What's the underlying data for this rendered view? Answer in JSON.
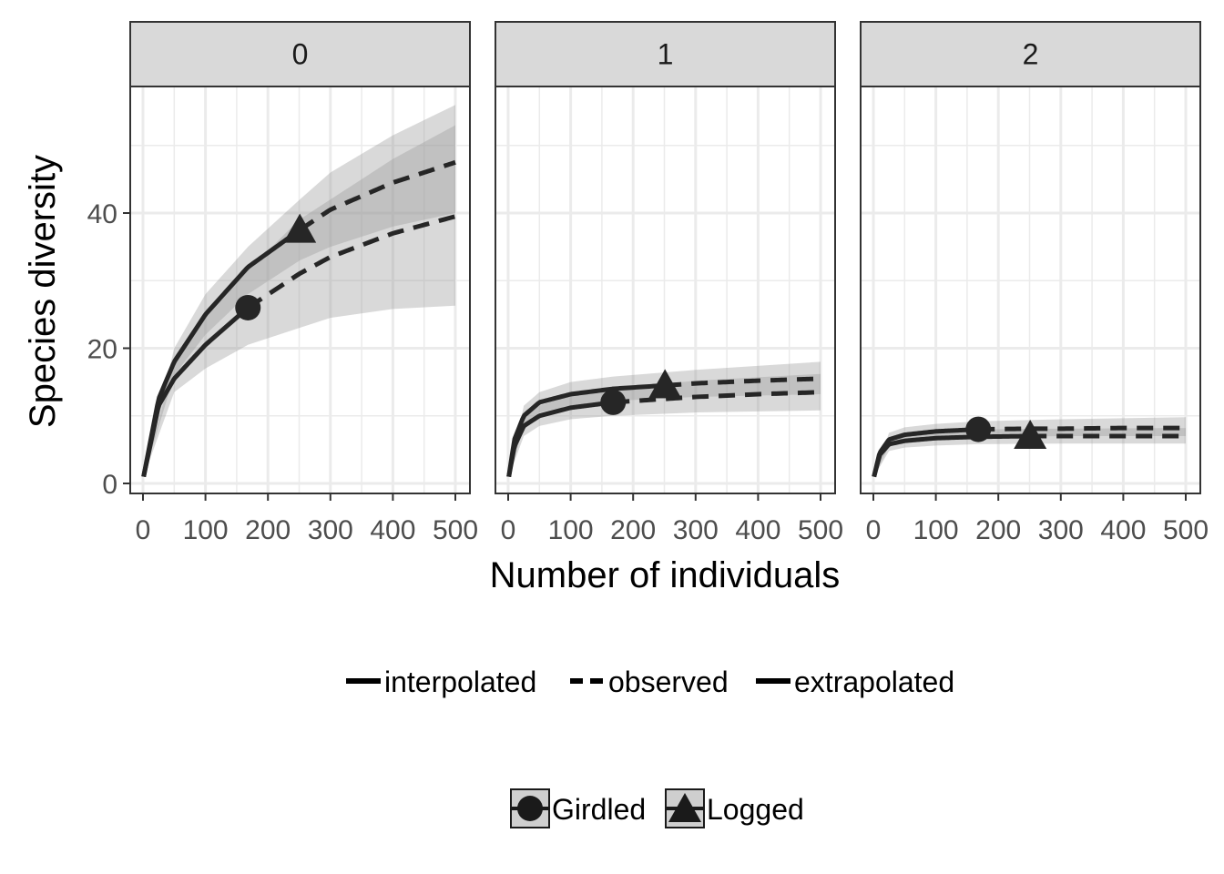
{
  "chart_data": {
    "type": "line",
    "title": "",
    "xlabel": "Number of individuals",
    "ylabel": "Species diversity",
    "xlim": [
      0,
      500
    ],
    "ylim": [
      0,
      55
    ],
    "x_ticks": [
      "0",
      "100",
      "200",
      "300",
      "400",
      "500"
    ],
    "y_ticks": [
      "0",
      "20",
      "40"
    ],
    "grid": true,
    "facets": [
      {
        "label": "0",
        "series": [
          {
            "name": "Girdled",
            "observed": {
              "x": 168,
              "y": 26
            },
            "points": [
              [
                1,
                1
              ],
              [
                25,
                11.5
              ],
              [
                50,
                15.5
              ],
              [
                100,
                20.5
              ],
              [
                168,
                26
              ],
              [
                250,
                31
              ],
              [
                300,
                33.5
              ],
              [
                400,
                37
              ],
              [
                500,
                39.5
              ]
            ],
            "band_lower": [
              [
                1,
                1
              ],
              [
                50,
                13.5
              ],
              [
                100,
                17
              ],
              [
                168,
                20.5
              ],
              [
                250,
                23
              ],
              [
                300,
                24.5
              ],
              [
                400,
                25.8
              ],
              [
                500,
                26.3
              ]
            ],
            "band_upper": [
              [
                1,
                1
              ],
              [
                50,
                18
              ],
              [
                100,
                24.5
              ],
              [
                168,
                31.5
              ],
              [
                250,
                39
              ],
              [
                300,
                42
              ],
              [
                400,
                48
              ],
              [
                500,
                53
              ]
            ]
          },
          {
            "name": "Logged",
            "observed": {
              "x": 251,
              "y": 37.5
            },
            "points": [
              [
                1,
                1
              ],
              [
                25,
                12.5
              ],
              [
                50,
                18
              ],
              [
                100,
                25
              ],
              [
                168,
                32
              ],
              [
                251,
                37.5
              ],
              [
                300,
                40.5
              ],
              [
                400,
                44.5
              ],
              [
                500,
                47.5
              ]
            ],
            "band_lower": [
              [
                1,
                1
              ],
              [
                50,
                16
              ],
              [
                100,
                22
              ],
              [
                168,
                28
              ],
              [
                251,
                33
              ],
              [
                300,
                35
              ],
              [
                400,
                38
              ],
              [
                500,
                40
              ]
            ],
            "band_upper": [
              [
                1,
                1
              ],
              [
                50,
                20
              ],
              [
                100,
                28
              ],
              [
                168,
                35
              ],
              [
                251,
                42
              ],
              [
                300,
                46
              ],
              [
                400,
                51.5
              ],
              [
                500,
                56
              ]
            ]
          }
        ]
      },
      {
        "label": "1",
        "series": [
          {
            "name": "Girdled",
            "observed": {
              "x": 168,
              "y": 12
            },
            "points": [
              [
                1,
                1
              ],
              [
                10,
                5.5
              ],
              [
                25,
                8.5
              ],
              [
                50,
                10
              ],
              [
                100,
                11.2
              ],
              [
                168,
                12
              ],
              [
                250,
                12.5
              ],
              [
                300,
                12.8
              ],
              [
                400,
                13.2
              ],
              [
                500,
                13.5
              ]
            ],
            "band_lower": [
              [
                1,
                1
              ],
              [
                25,
                7
              ],
              [
                50,
                8.5
              ],
              [
                100,
                9.5
              ],
              [
                168,
                10
              ],
              [
                300,
                10.5
              ],
              [
                500,
                10.8
              ]
            ],
            "band_upper": [
              [
                1,
                1
              ],
              [
                25,
                10
              ],
              [
                50,
                11.5
              ],
              [
                100,
                13
              ],
              [
                168,
                14
              ],
              [
                300,
                15.2
              ],
              [
                500,
                16.2
              ]
            ]
          },
          {
            "name": "Logged",
            "observed": {
              "x": 251,
              "y": 14.5
            },
            "points": [
              [
                1,
                1
              ],
              [
                10,
                6.5
              ],
              [
                25,
                10
              ],
              [
                50,
                12
              ],
              [
                100,
                13.2
              ],
              [
                168,
                14
              ],
              [
                251,
                14.5
              ],
              [
                300,
                14.8
              ],
              [
                400,
                15.2
              ],
              [
                500,
                15.5
              ]
            ],
            "band_lower": [
              [
                1,
                1
              ],
              [
                25,
                8.5
              ],
              [
                50,
                10.5
              ],
              [
                100,
                11.5
              ],
              [
                168,
                12.2
              ],
              [
                300,
                12.8
              ],
              [
                500,
                13.2
              ]
            ],
            "band_upper": [
              [
                1,
                1
              ],
              [
                25,
                11.5
              ],
              [
                50,
                13.5
              ],
              [
                100,
                15
              ],
              [
                168,
                15.8
              ],
              [
                300,
                16.8
              ],
              [
                500,
                18
              ]
            ]
          }
        ]
      },
      {
        "label": "2",
        "series": [
          {
            "name": "Girdled",
            "observed": {
              "x": 168,
              "y": 8
            },
            "points": [
              [
                1,
                1
              ],
              [
                10,
                4.5
              ],
              [
                25,
                6.5
              ],
              [
                50,
                7.2
              ],
              [
                100,
                7.7
              ],
              [
                168,
                8
              ],
              [
                250,
                8.1
              ],
              [
                300,
                8.1
              ],
              [
                400,
                8.2
              ],
              [
                500,
                8.2
              ]
            ],
            "band_lower": [
              [
                1,
                1
              ],
              [
                25,
                5.5
              ],
              [
                50,
                6.2
              ],
              [
                100,
                6.6
              ],
              [
                168,
                6.8
              ],
              [
                300,
                7
              ],
              [
                500,
                7
              ]
            ],
            "band_upper": [
              [
                1,
                1
              ],
              [
                25,
                7.5
              ],
              [
                50,
                8.3
              ],
              [
                100,
                8.8
              ],
              [
                168,
                9.2
              ],
              [
                300,
                9.5
              ],
              [
                500,
                9.8
              ]
            ]
          },
          {
            "name": "Logged",
            "observed": {
              "x": 251,
              "y": 7
            },
            "points": [
              [
                1,
                1
              ],
              [
                10,
                4.2
              ],
              [
                25,
                5.8
              ],
              [
                50,
                6.3
              ],
              [
                100,
                6.7
              ],
              [
                168,
                6.9
              ],
              [
                251,
                7
              ],
              [
                300,
                7
              ],
              [
                400,
                7
              ],
              [
                500,
                7
              ]
            ],
            "band_lower": [
              [
                1,
                1
              ],
              [
                25,
                4.8
              ],
              [
                50,
                5.3
              ],
              [
                100,
                5.6
              ],
              [
                168,
                5.8
              ],
              [
                300,
                5.9
              ],
              [
                500,
                5.9
              ]
            ],
            "band_upper": [
              [
                1,
                1
              ],
              [
                25,
                6.8
              ],
              [
                50,
                7.3
              ],
              [
                100,
                7.7
              ],
              [
                168,
                8
              ],
              [
                300,
                8.1
              ],
              [
                500,
                8.2
              ]
            ]
          }
        ]
      }
    ],
    "legend": {
      "placement": "bottom",
      "linetype": [
        "interpolated",
        "observed",
        "extrapolated"
      ],
      "shape": [
        "Girdled",
        "Logged"
      ]
    },
    "colors": {
      "line": "#262626",
      "band_inner": "#a6a6a6",
      "band_outer": "#cfcfcf",
      "strip": "#d9d9d9",
      "grid": "#ebebeb"
    }
  }
}
